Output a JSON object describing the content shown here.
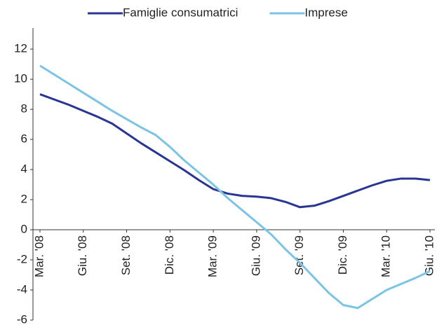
{
  "chart_data": {
    "type": "line",
    "categories": [
      "Mar. '08",
      null,
      null,
      "Giu. '08",
      null,
      null,
      "Set. '08",
      null,
      null,
      "Dic. '08",
      null,
      null,
      "Mar. '09",
      null,
      null,
      "Giu. '09",
      null,
      null,
      "Set. '09",
      null,
      null,
      "Dic. '09",
      null,
      null,
      "Mar. '10",
      null,
      null,
      "Giu. '10"
    ],
    "series": [
      {
        "name": "Famiglie consumatrici",
        "color": "#283593",
        "values": [
          9.0,
          8.65,
          8.3,
          7.9,
          7.5,
          7.05,
          6.4,
          5.75,
          5.15,
          4.55,
          3.95,
          3.3,
          2.7,
          2.4,
          2.25,
          2.2,
          2.1,
          1.85,
          1.5,
          1.6,
          1.9,
          2.25,
          2.6,
          2.95,
          3.25,
          3.4,
          3.4,
          3.3
        ]
      },
      {
        "name": "Imprese",
        "color": "#7cc4e4",
        "values": [
          10.9,
          10.3,
          9.7,
          9.1,
          8.5,
          7.9,
          7.35,
          6.8,
          6.3,
          5.5,
          4.6,
          3.8,
          3.0,
          2.1,
          1.3,
          0.5,
          -0.3,
          -1.3,
          -2.2,
          -3.2,
          -4.2,
          -5.0,
          -5.2,
          -4.6,
          -4.0,
          -3.6,
          -3.2,
          -2.75
        ]
      }
    ],
    "ylim": [
      -6,
      13.4
    ],
    "yticks": [
      -6,
      -4,
      -2,
      0,
      2,
      4,
      6,
      8,
      10,
      12
    ],
    "legend": "top"
  }
}
